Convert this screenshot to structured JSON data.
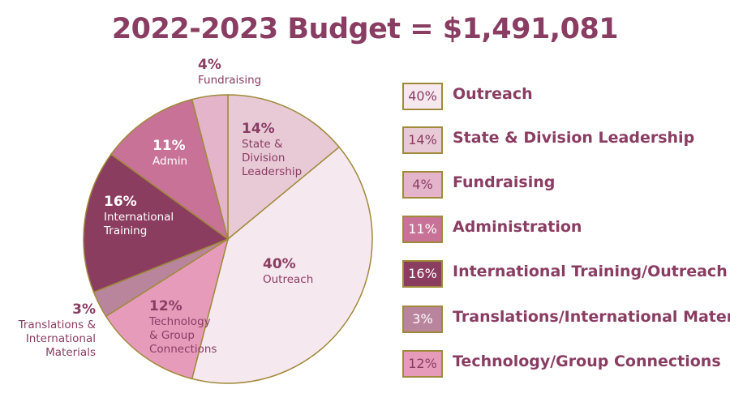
{
  "title": "2022-2023 Budget = $1,491,081",
  "chart_data": {
    "type": "pie",
    "title": "2022-2023 Budget = $1,491,081",
    "slices": [
      {
        "name": "Outreach",
        "value": 40,
        "pct": "40%",
        "label_lines": [
          "Outreach"
        ],
        "color": "#f6e8ef",
        "text_color": "#8a3d62",
        "legend": "Outreach"
      },
      {
        "name": "Technology/Group Connections",
        "value": 12,
        "pct": "12%",
        "label_lines": [
          "Technology",
          "& Group",
          "Connections"
        ],
        "color": "#e79bbb",
        "text_color": "#8a3d62",
        "legend": "Technology/Group Connections"
      },
      {
        "name": "Translations/International Materials",
        "value": 3,
        "pct": "3%",
        "label_lines": [
          "Translations &",
          "International",
          "Materials"
        ],
        "color": "#b8859d",
        "text_color": "#8a3d62",
        "legend": "Translations/International Materials"
      },
      {
        "name": "International Training/Outreach",
        "value": 16,
        "pct": "16%",
        "label_lines": [
          "International",
          "Training"
        ],
        "color": "#8b3d60",
        "text_color": "#ffffff",
        "legend": "International Training/Outreach"
      },
      {
        "name": "Administration",
        "value": 11,
        "pct": "11%",
        "label_lines": [
          "Admin"
        ],
        "color": "#c77296",
        "text_color": "#ffffff",
        "legend": "Administration"
      },
      {
        "name": "Fundraising",
        "value": 4,
        "pct": "4%",
        "label_lines": [
          "Fundraising"
        ],
        "color": "#e4b4cb",
        "text_color": "#8a3d62",
        "legend": "Fundraising"
      },
      {
        "name": "State & Division Leadership",
        "value": 14,
        "pct": "14%",
        "label_lines": [
          "State &",
          "Division",
          "Leadership"
        ],
        "color": "#e8cad7",
        "text_color": "#8a3d62",
        "legend": "State & Division Leadership"
      }
    ],
    "slice_order": "starting at 12 o'clock, going clockwise: State & Division Leadership, Outreach, Technology/Group Connections, Translations/International Materials, International Training/Outreach, Administration, Fundraising",
    "border_color": "#a08a3a"
  },
  "legend": [
    {
      "pct": "40%",
      "label": "Outreach",
      "color": "#f6e8ef",
      "text_color": "#8a3d62"
    },
    {
      "pct": "14%",
      "label": "State & Division Leadership",
      "color": "#e8cad7",
      "text_color": "#8a3d62"
    },
    {
      "pct": "4%",
      "label": "Fundraising",
      "color": "#e4b4cb",
      "text_color": "#8a3d62"
    },
    {
      "pct": "11%",
      "label": "Administration",
      "color": "#c77296",
      "text_color": "#ffffff"
    },
    {
      "pct": "16%",
      "label": "International Training/Outreach",
      "color": "#8b3d60",
      "text_color": "#ffffff"
    },
    {
      "pct": "3%",
      "label": "Translations/International Materials",
      "color": "#b8859d",
      "text_color": "#ffffff"
    },
    {
      "pct": "12%",
      "label": "Technology/Group Connections",
      "color": "#e79bbb",
      "text_color": "#8a3d62"
    }
  ]
}
